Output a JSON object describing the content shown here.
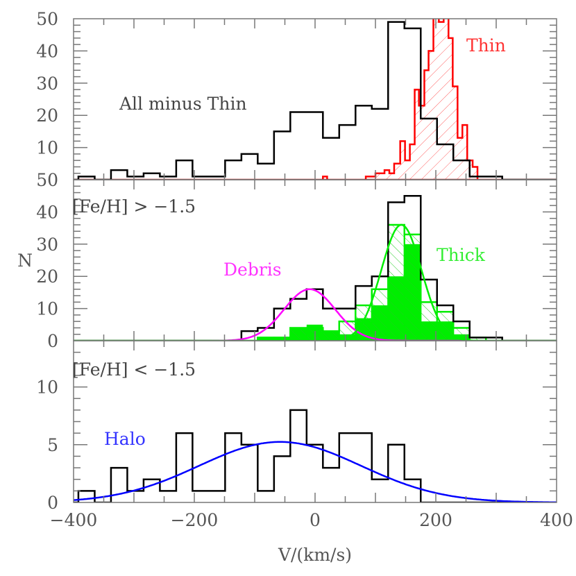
{
  "chart_data": {
    "type": "bar",
    "xlabel": "V/(km/s)",
    "ylabel": "N",
    "xlim": [
      -400,
      400
    ],
    "xticks": [
      -400,
      -200,
      0,
      200,
      400
    ],
    "xtick_labels": [
      "−400",
      "−200",
      "0",
      "200",
      "400"
    ],
    "colors": {
      "all": "#000000",
      "thin": "#ff0000",
      "thick": "#00ee00",
      "debris": "#ff00ff",
      "halo": "#0000ff",
      "text": "#444444"
    },
    "bin_edges": [
      -419,
      -392,
      -365,
      -338,
      -311,
      -284,
      -257,
      -230,
      -203,
      -176,
      -149,
      -122,
      -95,
      -68,
      -41,
      -14,
      13,
      40,
      67,
      94,
      121,
      148,
      175,
      202,
      229,
      256,
      283,
      310
    ],
    "panels": [
      {
        "ylim": [
          0,
          50
        ],
        "ytick_labels": [
          "10",
          "20",
          "30",
          "40",
          "50"
        ],
        "yticks": [
          10,
          20,
          30,
          40,
          50
        ],
        "annotations": [
          {
            "text": "All minus Thin",
            "series": "all"
          },
          {
            "text": "Thin",
            "series": "thin"
          }
        ],
        "series": [
          {
            "name": "All minus Thin",
            "style": "step",
            "color": "#000000",
            "values": [
              0,
              1,
              0,
              3,
              1,
              2,
              1,
              6,
              1,
              1,
              6,
              8,
              5,
              15,
              21,
              21,
              13,
              17,
              23,
              22,
              49,
              47,
              19,
              11,
              6,
              1,
              1
            ]
          },
          {
            "name": "Thin",
            "style": "hatched-step",
            "color": "#ff0000",
            "edges": [
              84,
              100,
              115,
              123,
              131,
              141,
              149,
              157,
              165,
              172,
              181,
              188,
              196,
              205,
              213,
              221,
              228,
              236,
              244,
              252,
              261,
              269
            ],
            "values": [
              1,
              2,
              3,
              2,
              5,
              12,
              6,
              11,
              28,
              23,
              34,
              40,
              55,
              49,
              55,
              44,
              29,
              13,
              17,
              6,
              4
            ],
            "extra_bins": [
              {
                "edges": [
                  13,
                  20
                ],
                "value": 1
              }
            ]
          }
        ]
      },
      {
        "ylim": [
          0,
          50
        ],
        "ytick_labels": [
          "0",
          "10",
          "20",
          "30",
          "40",
          "50"
        ],
        "yticks": [
          0,
          10,
          20,
          30,
          40,
          50
        ],
        "annotations": [
          {
            "text": "[Fe/H] > −1.5",
            "series": "label"
          },
          {
            "text": "Debris",
            "series": "debris"
          },
          {
            "text": "Thick",
            "series": "thick"
          }
        ],
        "series": [
          {
            "name": "all",
            "style": "step",
            "color": "#000000",
            "values": [
              0,
              0,
              0,
              0,
              0,
              0,
              0,
              0,
              0,
              0,
              0,
              3,
              4,
              10,
              13,
              16,
              10,
              10,
              17,
              20,
              43,
              45,
              19,
              11,
              6,
              1,
              1
            ]
          },
          {
            "name": "Thick",
            "style": "hatched-step",
            "color": "#00ee00",
            "values": [
              0,
              0,
              0,
              0,
              0,
              0,
              0,
              0,
              0,
              0,
              0,
              0,
              1,
              1,
              4,
              4,
              3,
              6,
              11,
              16,
              36,
              33,
              12,
              9,
              4,
              1,
              0
            ]
          },
          {
            "name": "thick-filled",
            "style": "filled",
            "color": "#00ee00",
            "values": [
              0,
              0,
              0,
              0,
              0,
              0,
              0,
              0,
              0,
              0,
              0,
              0,
              1,
              1,
              4,
              5,
              3,
              2,
              7,
              11,
              20,
              30,
              6,
              6,
              2,
              0,
              0
            ]
          }
        ],
        "gaussians": [
          {
            "name": "Debris",
            "color": "#ff00ff",
            "amplitude": 16,
            "mean": -9,
            "sigma": 42.5
          },
          {
            "name": "Thick",
            "color": "#00ee00",
            "amplitude": 36,
            "mean": 143,
            "sigma": 33.5
          }
        ]
      },
      {
        "ylim": [
          0,
          14
        ],
        "ytick_labels": [
          "0",
          "5",
          "10"
        ],
        "yticks": [
          0,
          5,
          10
        ],
        "annotations": [
          {
            "text": "[Fe/H] < −1.5",
            "series": "label"
          },
          {
            "text": "Halo",
            "series": "halo"
          }
        ],
        "series": [
          {
            "name": "all",
            "style": "step",
            "color": "#000000",
            "values": [
              0,
              1,
              0,
              3,
              1,
              2,
              1,
              6,
              1,
              1,
              6,
              5,
              1,
              4,
              8,
              5,
              3,
              6,
              6,
              2,
              5,
              2,
              0,
              0,
              0,
              0,
              0
            ]
          }
        ],
        "gaussians": [
          {
            "name": "Halo",
            "color": "#0000ff",
            "amplitude": 5.24,
            "mean": -58,
            "sigma": 134
          }
        ]
      }
    ]
  }
}
